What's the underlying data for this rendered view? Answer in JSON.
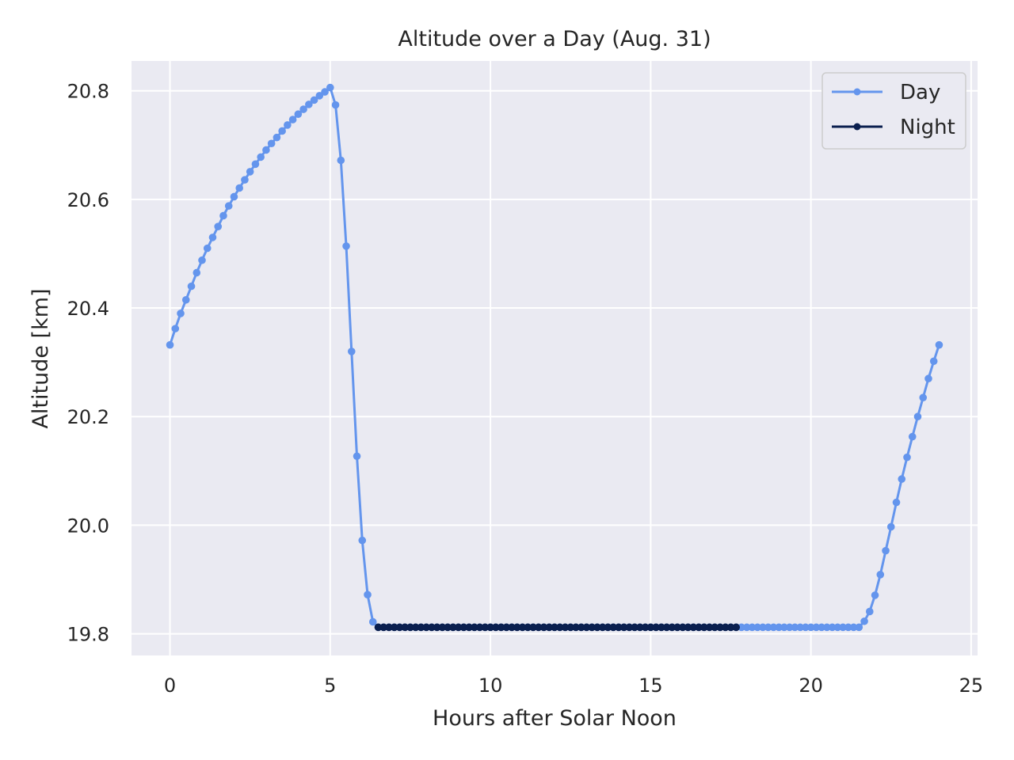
{
  "chart_data": {
    "type": "line",
    "title": "Altitude over a Day (Aug. 31)",
    "xlabel": "Hours after Solar Noon",
    "ylabel": "Altitude [km]",
    "xlim": [
      -1.2,
      25.2
    ],
    "ylim": [
      19.76,
      20.855
    ],
    "xticks": [
      0,
      5,
      10,
      15,
      20,
      25
    ],
    "xtick_labels": [
      "0",
      "5",
      "10",
      "15",
      "20",
      "25"
    ],
    "yticks": [
      19.8,
      20.0,
      20.2,
      20.4,
      20.6,
      20.8
    ],
    "ytick_labels": [
      "19.8",
      "20.0",
      "20.2",
      "20.4",
      "20.6",
      "20.8"
    ],
    "grid": true,
    "legend_position": "top-right",
    "colors": {
      "day": "#6495ed",
      "night": "#0a1f4f",
      "axes_bg": "#eaeaf2",
      "grid": "#ffffff"
    },
    "series": [
      {
        "name": "Day",
        "description": "Sampled every 10 min (0.1667 h) from 0 to 24 h; rises to ~20.807 km near 4.83 h, descends to 19.812 km by ~6.3 h, holds flat, then climbs back after ~21.5 h",
        "x": [
          0.0,
          0.1667,
          0.3333,
          0.5,
          0.6667,
          0.8333,
          1.0,
          1.1667,
          1.3333,
          1.5,
          1.6667,
          1.8333,
          2.0,
          2.1667,
          2.3333,
          2.5,
          2.6667,
          2.8333,
          3.0,
          3.1667,
          3.3333,
          3.5,
          3.6667,
          3.8333,
          4.0,
          4.1667,
          4.3333,
          4.5,
          4.6667,
          4.8333,
          5.0,
          5.1667,
          5.3333,
          5.5,
          5.6667,
          5.8333,
          6.0,
          6.1667,
          6.3333,
          6.5,
          6.6667,
          6.8333,
          7.0,
          7.1667,
          7.3333,
          7.5,
          7.6667,
          7.8333,
          8.0,
          8.1667,
          8.3333,
          8.5,
          8.6667,
          8.8333,
          9.0,
          9.1667,
          9.3333,
          9.5,
          9.6667,
          9.8333,
          10.0,
          10.1667,
          10.3333,
          10.5,
          10.6667,
          10.8333,
          11.0,
          11.1667,
          11.3333,
          11.5,
          11.6667,
          11.8333,
          12.0,
          12.1667,
          12.3333,
          12.5,
          12.6667,
          12.8333,
          13.0,
          13.1667,
          13.3333,
          13.5,
          13.6667,
          13.8333,
          14.0,
          14.1667,
          14.3333,
          14.5,
          14.6667,
          14.8333,
          15.0,
          15.1667,
          15.3333,
          15.5,
          15.6667,
          15.8333,
          16.0,
          16.1667,
          16.3333,
          16.5,
          16.6667,
          16.8333,
          17.0,
          17.1667,
          17.3333,
          17.5,
          17.6667,
          17.8333,
          18.0,
          18.1667,
          18.3333,
          18.5,
          18.6667,
          18.8333,
          19.0,
          19.1667,
          19.3333,
          19.5,
          19.6667,
          19.8333,
          20.0,
          20.1667,
          20.3333,
          20.5,
          20.6667,
          20.8333,
          21.0,
          21.1667,
          21.3333,
          21.5,
          21.6667,
          21.8333,
          22.0,
          22.1667,
          22.3333,
          22.5,
          22.6667,
          22.8333,
          23.0,
          23.1667,
          23.3333,
          23.5,
          23.6667,
          23.8333,
          24.0
        ],
        "values": [
          20.332,
          20.362,
          20.39,
          20.415,
          20.44,
          20.465,
          20.488,
          20.51,
          20.53,
          20.55,
          20.57,
          20.588,
          20.605,
          20.621,
          20.636,
          20.651,
          20.665,
          20.678,
          20.691,
          20.703,
          20.714,
          20.726,
          20.737,
          20.747,
          20.757,
          20.766,
          20.775,
          20.783,
          20.791,
          20.798,
          20.806,
          20.774,
          20.672,
          20.514,
          20.32,
          20.127,
          19.972,
          19.872,
          19.822,
          19.812,
          19.812,
          19.812,
          19.812,
          19.812,
          19.812,
          19.812,
          19.812,
          19.812,
          19.812,
          19.812,
          19.812,
          19.812,
          19.812,
          19.812,
          19.812,
          19.812,
          19.812,
          19.812,
          19.812,
          19.812,
          19.812,
          19.812,
          19.812,
          19.812,
          19.812,
          19.812,
          19.812,
          19.812,
          19.812,
          19.812,
          19.812,
          19.812,
          19.812,
          19.812,
          19.812,
          19.812,
          19.812,
          19.812,
          19.812,
          19.812,
          19.812,
          19.812,
          19.812,
          19.812,
          19.812,
          19.812,
          19.812,
          19.812,
          19.812,
          19.812,
          19.812,
          19.812,
          19.812,
          19.812,
          19.812,
          19.812,
          19.812,
          19.812,
          19.812,
          19.812,
          19.812,
          19.812,
          19.812,
          19.812,
          19.812,
          19.812,
          19.812,
          19.812,
          19.812,
          19.812,
          19.812,
          19.812,
          19.812,
          19.812,
          19.812,
          19.812,
          19.812,
          19.812,
          19.812,
          19.812,
          19.812,
          19.812,
          19.812,
          19.812,
          19.812,
          19.812,
          19.812,
          19.812,
          19.812,
          19.812,
          19.823,
          19.841,
          19.871,
          19.909,
          19.953,
          19.997,
          20.042,
          20.085,
          20.125,
          20.163,
          20.2,
          20.235,
          20.27,
          20.302,
          20.332
        ]
      },
      {
        "name": "Night",
        "description": "Sampled every 10 min from 6.5 h to 17.667 h, constant at 19.812 km",
        "x": [
          6.5,
          6.6667,
          6.8333,
          7.0,
          7.1667,
          7.3333,
          7.5,
          7.6667,
          7.8333,
          8.0,
          8.1667,
          8.3333,
          8.5,
          8.6667,
          8.8333,
          9.0,
          9.1667,
          9.3333,
          9.5,
          9.6667,
          9.8333,
          10.0,
          10.1667,
          10.3333,
          10.5,
          10.6667,
          10.8333,
          11.0,
          11.1667,
          11.3333,
          11.5,
          11.6667,
          11.8333,
          12.0,
          12.1667,
          12.3333,
          12.5,
          12.6667,
          12.8333,
          13.0,
          13.1667,
          13.3333,
          13.5,
          13.6667,
          13.8333,
          14.0,
          14.1667,
          14.3333,
          14.5,
          14.6667,
          14.8333,
          15.0,
          15.1667,
          15.3333,
          15.5,
          15.6667,
          15.8333,
          16.0,
          16.1667,
          16.3333,
          16.5,
          16.6667,
          16.8333,
          17.0,
          17.1667,
          17.3333,
          17.5,
          17.6667
        ],
        "values": [
          19.812,
          19.812,
          19.812,
          19.812,
          19.812,
          19.812,
          19.812,
          19.812,
          19.812,
          19.812,
          19.812,
          19.812,
          19.812,
          19.812,
          19.812,
          19.812,
          19.812,
          19.812,
          19.812,
          19.812,
          19.812,
          19.812,
          19.812,
          19.812,
          19.812,
          19.812,
          19.812,
          19.812,
          19.812,
          19.812,
          19.812,
          19.812,
          19.812,
          19.812,
          19.812,
          19.812,
          19.812,
          19.812,
          19.812,
          19.812,
          19.812,
          19.812,
          19.812,
          19.812,
          19.812,
          19.812,
          19.812,
          19.812,
          19.812,
          19.812,
          19.812,
          19.812,
          19.812,
          19.812,
          19.812,
          19.812,
          19.812,
          19.812,
          19.812,
          19.812,
          19.812,
          19.812,
          19.812,
          19.812,
          19.812,
          19.812,
          19.812,
          19.812
        ]
      }
    ]
  }
}
